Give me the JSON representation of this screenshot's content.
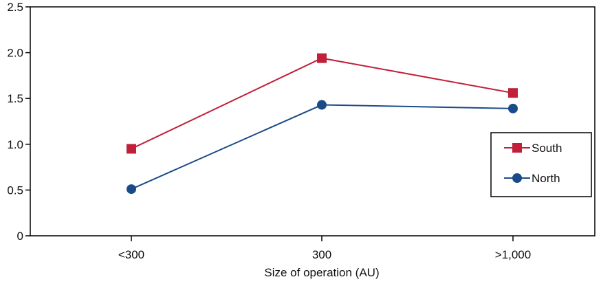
{
  "chart_data": {
    "type": "line",
    "title": "",
    "xlabel": "Size of operation (AU)",
    "ylabel": "",
    "categories": [
      "<300",
      "300",
      ">1,000"
    ],
    "ylim": [
      0,
      2.5
    ],
    "yticks": [
      0,
      0.5,
      1.0,
      1.5,
      2.0,
      2.5
    ],
    "ytick_labels": [
      "0",
      "0.5",
      "1.0",
      "1.5",
      "2.0",
      "2.5"
    ],
    "grid": false,
    "legend_position": "right",
    "series": [
      {
        "name": "South",
        "values": [
          0.95,
          1.94,
          1.56
        ],
        "color": "#c0203a",
        "marker": "square"
      },
      {
        "name": "North",
        "values": [
          0.51,
          1.43,
          1.39
        ],
        "color": "#1a4a8a",
        "marker": "circle"
      }
    ]
  }
}
